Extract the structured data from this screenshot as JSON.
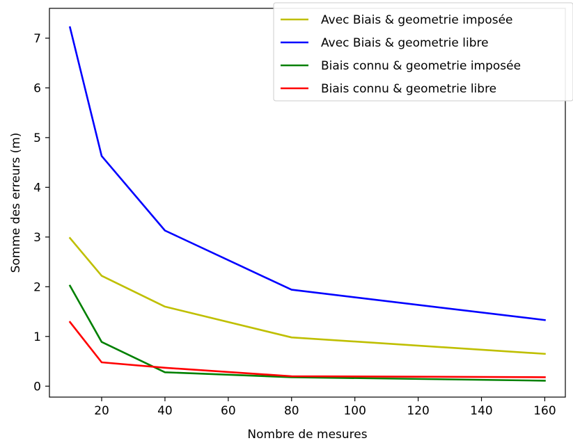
{
  "chart_data": {
    "type": "line",
    "title": "",
    "xlabel": "Nombre de mesures",
    "ylabel": "Somme des erreurs (m)",
    "x": [
      10,
      20,
      40,
      80,
      160
    ],
    "xlim": [
      3.5,
      166.5
    ],
    "ylim": [
      -0.22,
      7.6
    ],
    "xticks": [
      20,
      40,
      60,
      80,
      100,
      120,
      140,
      160
    ],
    "yticks": [
      0,
      1,
      2,
      3,
      4,
      5,
      6,
      7
    ],
    "grid": false,
    "legend_position": "top-right",
    "series": [
      {
        "name": "Avec Biais &  geometrie imposée",
        "color": "#bfbf00",
        "values": [
          2.98,
          2.22,
          1.6,
          0.98,
          0.65
        ]
      },
      {
        "name": "Avec Biais & geometrie libre",
        "color": "#0000ff",
        "values": [
          7.22,
          4.63,
          3.13,
          1.94,
          1.33
        ]
      },
      {
        "name": "Biais connu & geometrie imposée",
        "color": "#008000",
        "values": [
          2.02,
          0.89,
          0.28,
          0.18,
          0.11
        ]
      },
      {
        "name": "Biais connu &  geometrie libre",
        "color": "#ff0000",
        "values": [
          1.29,
          0.48,
          0.37,
          0.2,
          0.18
        ]
      }
    ]
  }
}
